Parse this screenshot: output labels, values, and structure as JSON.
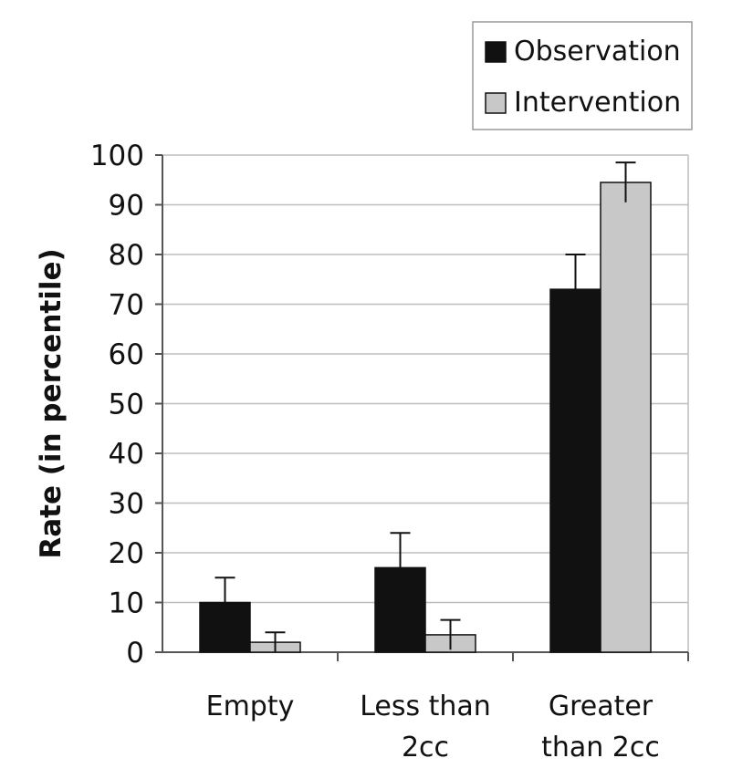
{
  "colors": {
    "observation": "#111111",
    "intervention": "#c8c8c8",
    "grid": "#bdbdbd",
    "axis": "#555555"
  },
  "chart_data": {
    "type": "bar",
    "ylabel": "Rate (in percentile)",
    "xlabel": "",
    "ylim": [
      0,
      100
    ],
    "yticks": [
      0,
      10,
      20,
      30,
      40,
      50,
      60,
      70,
      80,
      90,
      100
    ],
    "grid": true,
    "legend_position": "top-right",
    "error_bars": true,
    "categories": [
      [
        "Empty"
      ],
      [
        "Less than",
        "2cc"
      ],
      [
        "Greater",
        "than 2cc"
      ]
    ],
    "series": [
      {
        "name": "Observation",
        "color": "#111111",
        "values": [
          10,
          17,
          73
        ],
        "errors": [
          5,
          7,
          7
        ]
      },
      {
        "name": "Intervention",
        "color": "#c8c8c8",
        "values": [
          2,
          3.5,
          94.5
        ],
        "errors": [
          2,
          3,
          4
        ]
      }
    ]
  }
}
